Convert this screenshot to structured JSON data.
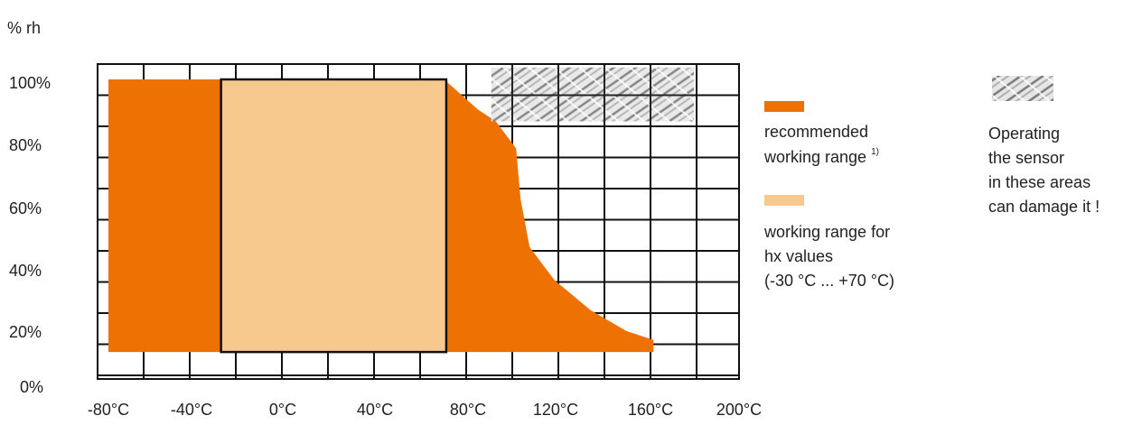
{
  "chart_data": {
    "type": "area",
    "ylabel": "% rh",
    "y_ticks": [
      "100%",
      "80%",
      "60%",
      "40%",
      "20%",
      "0%"
    ],
    "x_ticks": [
      "-80°C",
      "-40°C",
      "0°C",
      "40°C",
      "80°C",
      "120°C",
      "160°C",
      "200°C"
    ],
    "xlim": [
      -80,
      200
    ],
    "ylim": [
      0,
      100
    ],
    "grid": true,
    "recommended_range": {
      "label": "recommended",
      "label_line2": "working range",
      "footnote": "1)",
      "color": "#ED7203",
      "boundary": [
        {
          "x": -80,
          "y": 100
        },
        {
          "x": 69,
          "y": 100
        },
        {
          "x": 75,
          "y": 96
        },
        {
          "x": 84,
          "y": 90
        },
        {
          "x": 92,
          "y": 86
        },
        {
          "x": 101,
          "y": 77
        },
        {
          "x": 103,
          "y": 60
        },
        {
          "x": 107,
          "y": 44
        },
        {
          "x": 118,
          "y": 33
        },
        {
          "x": 134,
          "y": 23
        },
        {
          "x": 150,
          "y": 16
        },
        {
          "x": 162,
          "y": 13
        },
        {
          "x": 162,
          "y": 9
        },
        {
          "x": -80,
          "y": 9
        }
      ]
    },
    "hx_range": {
      "label_line1": "working range for",
      "label_line2": "hx values",
      "label_line3": "(-30 °C ... +70 °C)",
      "color": "#F8C98D",
      "x": [
        -30,
        70
      ],
      "y": [
        9,
        100
      ]
    },
    "damage_zone": {
      "label_line1": "Operating",
      "label_line2": "the sensor",
      "label_line3": "in these areas",
      "label_line4": "can damage it !",
      "color": "#BBBBBB",
      "x": [
        90,
        180
      ],
      "y": [
        86,
        104
      ]
    }
  }
}
